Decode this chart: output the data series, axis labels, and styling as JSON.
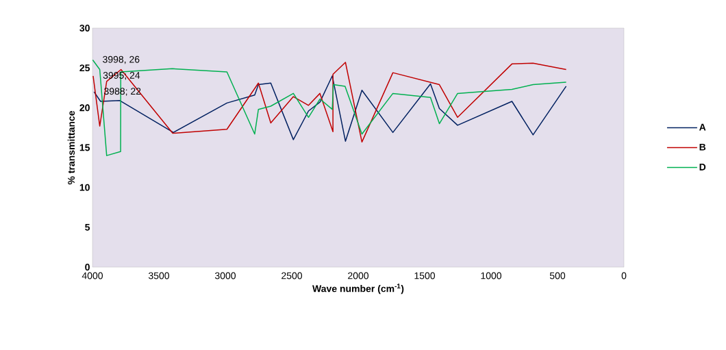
{
  "chart_data": {
    "type": "line",
    "xlabel": "Wave number (cm$^{-1}$)",
    "ylabel": "% transmittance",
    "xlim": [
      4000,
      0
    ],
    "xticks": [
      4000,
      3500,
      3000,
      2500,
      2000,
      1500,
      1000,
      500,
      0
    ],
    "ylim": [
      0,
      30
    ],
    "yticks": [
      0,
      5,
      10,
      15,
      20,
      25,
      30
    ],
    "legend": "right",
    "grid": false,
    "marker": "none",
    "series": [
      {
        "name": "A",
        "color": "#002060",
        "x": [
          3988,
          3939,
          3794,
          3391,
          2988,
          2779,
          2751,
          2658,
          2488,
          2374,
          2288,
          2195,
          2096,
          1972,
          1739,
          1456,
          1389,
          1252,
          843,
          684,
          435
        ],
        "values": [
          22,
          20.8,
          20.9,
          16.9,
          20.6,
          21.6,
          22.9,
          23.1,
          16.0,
          19.6,
          20.7,
          24.0,
          15.8,
          22.2,
          16.9,
          23.0,
          19.9,
          17.8,
          20.8,
          16.6,
          22.7
        ]
      },
      {
        "name": "B",
        "color": "#c00000",
        "x": [
          3995,
          3945,
          3893,
          3785,
          3396,
          2988,
          2751,
          2658,
          2488,
          2374,
          2288,
          2190,
          2190,
          2096,
          1972,
          1739,
          1389,
          1252,
          843,
          684,
          435
        ],
        "values": [
          24,
          17.7,
          23.3,
          24.8,
          16.8,
          17.3,
          23.1,
          18.1,
          21.4,
          20.3,
          21.8,
          17.0,
          24.2,
          25.7,
          15.7,
          24.4,
          22.9,
          18.8,
          25.5,
          25.6,
          24.8
        ]
      },
      {
        "name": "D",
        "color": "#00b050",
        "x": [
          3998,
          3945,
          3893,
          3788,
          3787,
          3400,
          2988,
          2779,
          2751,
          2658,
          2488,
          2374,
          2288,
          2195,
          2187,
          2099,
          1972,
          1739,
          1456,
          1389,
          1252,
          1085,
          843,
          684,
          435
        ],
        "values": [
          26,
          24.8,
          14.0,
          14.5,
          24.5,
          24.9,
          24.5,
          16.7,
          19.8,
          20.2,
          21.8,
          18.8,
          21.1,
          19.8,
          22.9,
          22.7,
          16.7,
          21.8,
          21.3,
          18.0,
          21.8,
          22.0,
          22.3,
          22.9,
          23.2
        ]
      }
    ],
    "annotations": [
      {
        "text": "3998, 26",
        "x": 3998,
        "y": 26
      },
      {
        "text": "3995; 24",
        "x": 3995,
        "y": 24
      },
      {
        "text": "3988; 22",
        "x": 3988,
        "y": 22
      }
    ]
  }
}
